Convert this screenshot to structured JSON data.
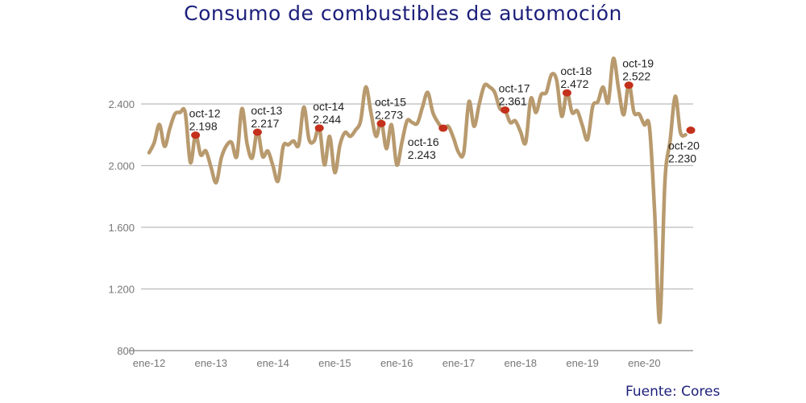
{
  "chart_data": {
    "type": "line",
    "title": "Consumo de combustibles de automoción",
    "source": "Fuente: Cores",
    "xlabel": "",
    "ylabel": "",
    "ylim": [
      800,
      2800
    ],
    "y_ticks": [
      {
        "value": 800,
        "label": "800"
      },
      {
        "value": 1200,
        "label": "1.200"
      },
      {
        "value": 1600,
        "label": "1.600"
      },
      {
        "value": 2000,
        "label": "2.000"
      },
      {
        "value": 2400,
        "label": "2.400"
      }
    ],
    "x_ticks": [
      {
        "month": "2012-01",
        "label": "ene-12"
      },
      {
        "month": "2013-01",
        "label": "ene-13"
      },
      {
        "month": "2014-01",
        "label": "ene-14"
      },
      {
        "month": "2015-01",
        "label": "ene-15"
      },
      {
        "month": "2016-01",
        "label": "ene-16"
      },
      {
        "month": "2017-01",
        "label": "ene-17"
      },
      {
        "month": "2018-01",
        "label": "ene-18"
      },
      {
        "month": "2019-01",
        "label": "ene-19"
      },
      {
        "month": "2020-01",
        "label": "ene-20"
      }
    ],
    "grid": "horizontal",
    "line_color": "#b89a6e",
    "marker_color": "#c3301b",
    "series": [
      {
        "months": [
          "2012-01",
          "2012-02",
          "2012-03",
          "2012-04",
          "2012-05",
          "2012-06",
          "2012-07",
          "2012-08",
          "2012-09",
          "2012-10",
          "2012-11",
          "2012-12",
          "2013-01",
          "2013-02",
          "2013-03",
          "2013-04",
          "2013-05",
          "2013-06",
          "2013-07",
          "2013-08",
          "2013-09",
          "2013-10",
          "2013-11",
          "2013-12",
          "2014-01",
          "2014-02",
          "2014-03",
          "2014-04",
          "2014-05",
          "2014-06",
          "2014-07",
          "2014-08",
          "2014-09",
          "2014-10",
          "2014-11",
          "2014-12",
          "2015-01",
          "2015-02",
          "2015-03",
          "2015-04",
          "2015-05",
          "2015-06",
          "2015-07",
          "2015-08",
          "2015-09",
          "2015-10",
          "2015-11",
          "2015-12",
          "2016-01",
          "2016-02",
          "2016-03",
          "2016-04",
          "2016-05",
          "2016-06",
          "2016-07",
          "2016-08",
          "2016-09",
          "2016-10",
          "2016-11",
          "2016-12",
          "2017-01",
          "2017-02",
          "2017-03",
          "2017-04",
          "2017-05",
          "2017-06",
          "2017-07",
          "2017-08",
          "2017-09",
          "2017-10",
          "2017-11",
          "2017-12",
          "2018-01",
          "2018-02",
          "2018-03",
          "2018-04",
          "2018-05",
          "2018-06",
          "2018-07",
          "2018-08",
          "2018-09",
          "2018-10",
          "2018-11",
          "2018-12",
          "2019-01",
          "2019-02",
          "2019-03",
          "2019-04",
          "2019-05",
          "2019-06",
          "2019-07",
          "2019-08",
          "2019-09",
          "2019-10",
          "2019-11",
          "2019-12",
          "2020-01",
          "2020-02",
          "2020-03",
          "2020-04",
          "2020-05",
          "2020-06",
          "2020-07",
          "2020-08",
          "2020-09"
        ],
        "values": [
          2084,
          2150,
          2267,
          2125,
          2240,
          2335,
          2345,
          2345,
          2020,
          2200,
          2070,
          2095,
          1990,
          1890,
          2050,
          2130,
          2150,
          2060,
          2370,
          2140,
          2050,
          2225,
          2060,
          2095,
          2000,
          1900,
          2125,
          2135,
          2160,
          2135,
          2380,
          2170,
          2160,
          2245,
          2005,
          2190,
          1955,
          2135,
          2215,
          2190,
          2230,
          2290,
          2510,
          2345,
          2190,
          2290,
          2110,
          2265,
          2005,
          2150,
          2290,
          2280,
          2275,
          2380,
          2475,
          2345,
          2280,
          2240,
          2255,
          2180,
          2085,
          2085,
          2415,
          2255,
          2400,
          2520,
          2510,
          2475,
          2370,
          2360,
          2280,
          2290,
          2220,
          2150,
          2435,
          2345,
          2460,
          2475,
          2590,
          2555,
          2320,
          2475,
          2345,
          2355,
          2260,
          2170,
          2385,
          2415,
          2510,
          2410,
          2695,
          2500,
          2330,
          2530,
          2345,
          2335,
          2265,
          2250,
          1700,
          985,
          1900,
          2160,
          2450,
          2215,
          2200
        ]
      }
    ],
    "annotations": [
      {
        "month": "2012-10",
        "label": "oct-12",
        "value_label": "2.198",
        "value": 2198
      },
      {
        "month": "2013-10",
        "label": "oct-13",
        "value_label": "2.217",
        "value": 2217
      },
      {
        "month": "2014-10",
        "label": "oct-14",
        "value_label": "2.244",
        "value": 2244
      },
      {
        "month": "2015-10",
        "label": "oct-15",
        "value_label": "2.273",
        "value": 2273
      },
      {
        "month": "2016-10",
        "label": "oct-16",
        "value_label": "2.243",
        "value": 2243
      },
      {
        "month": "2017-10",
        "label": "oct-17",
        "value_label": "2.361",
        "value": 2361
      },
      {
        "month": "2018-10",
        "label": "oct-18",
        "value_label": "2.472",
        "value": 2472
      },
      {
        "month": "2019-10",
        "label": "oct-19",
        "value_label": "2.522",
        "value": 2522
      },
      {
        "month": "2020-10",
        "label": "oct-20",
        "value_label": "2.230",
        "value": 2230
      }
    ]
  }
}
